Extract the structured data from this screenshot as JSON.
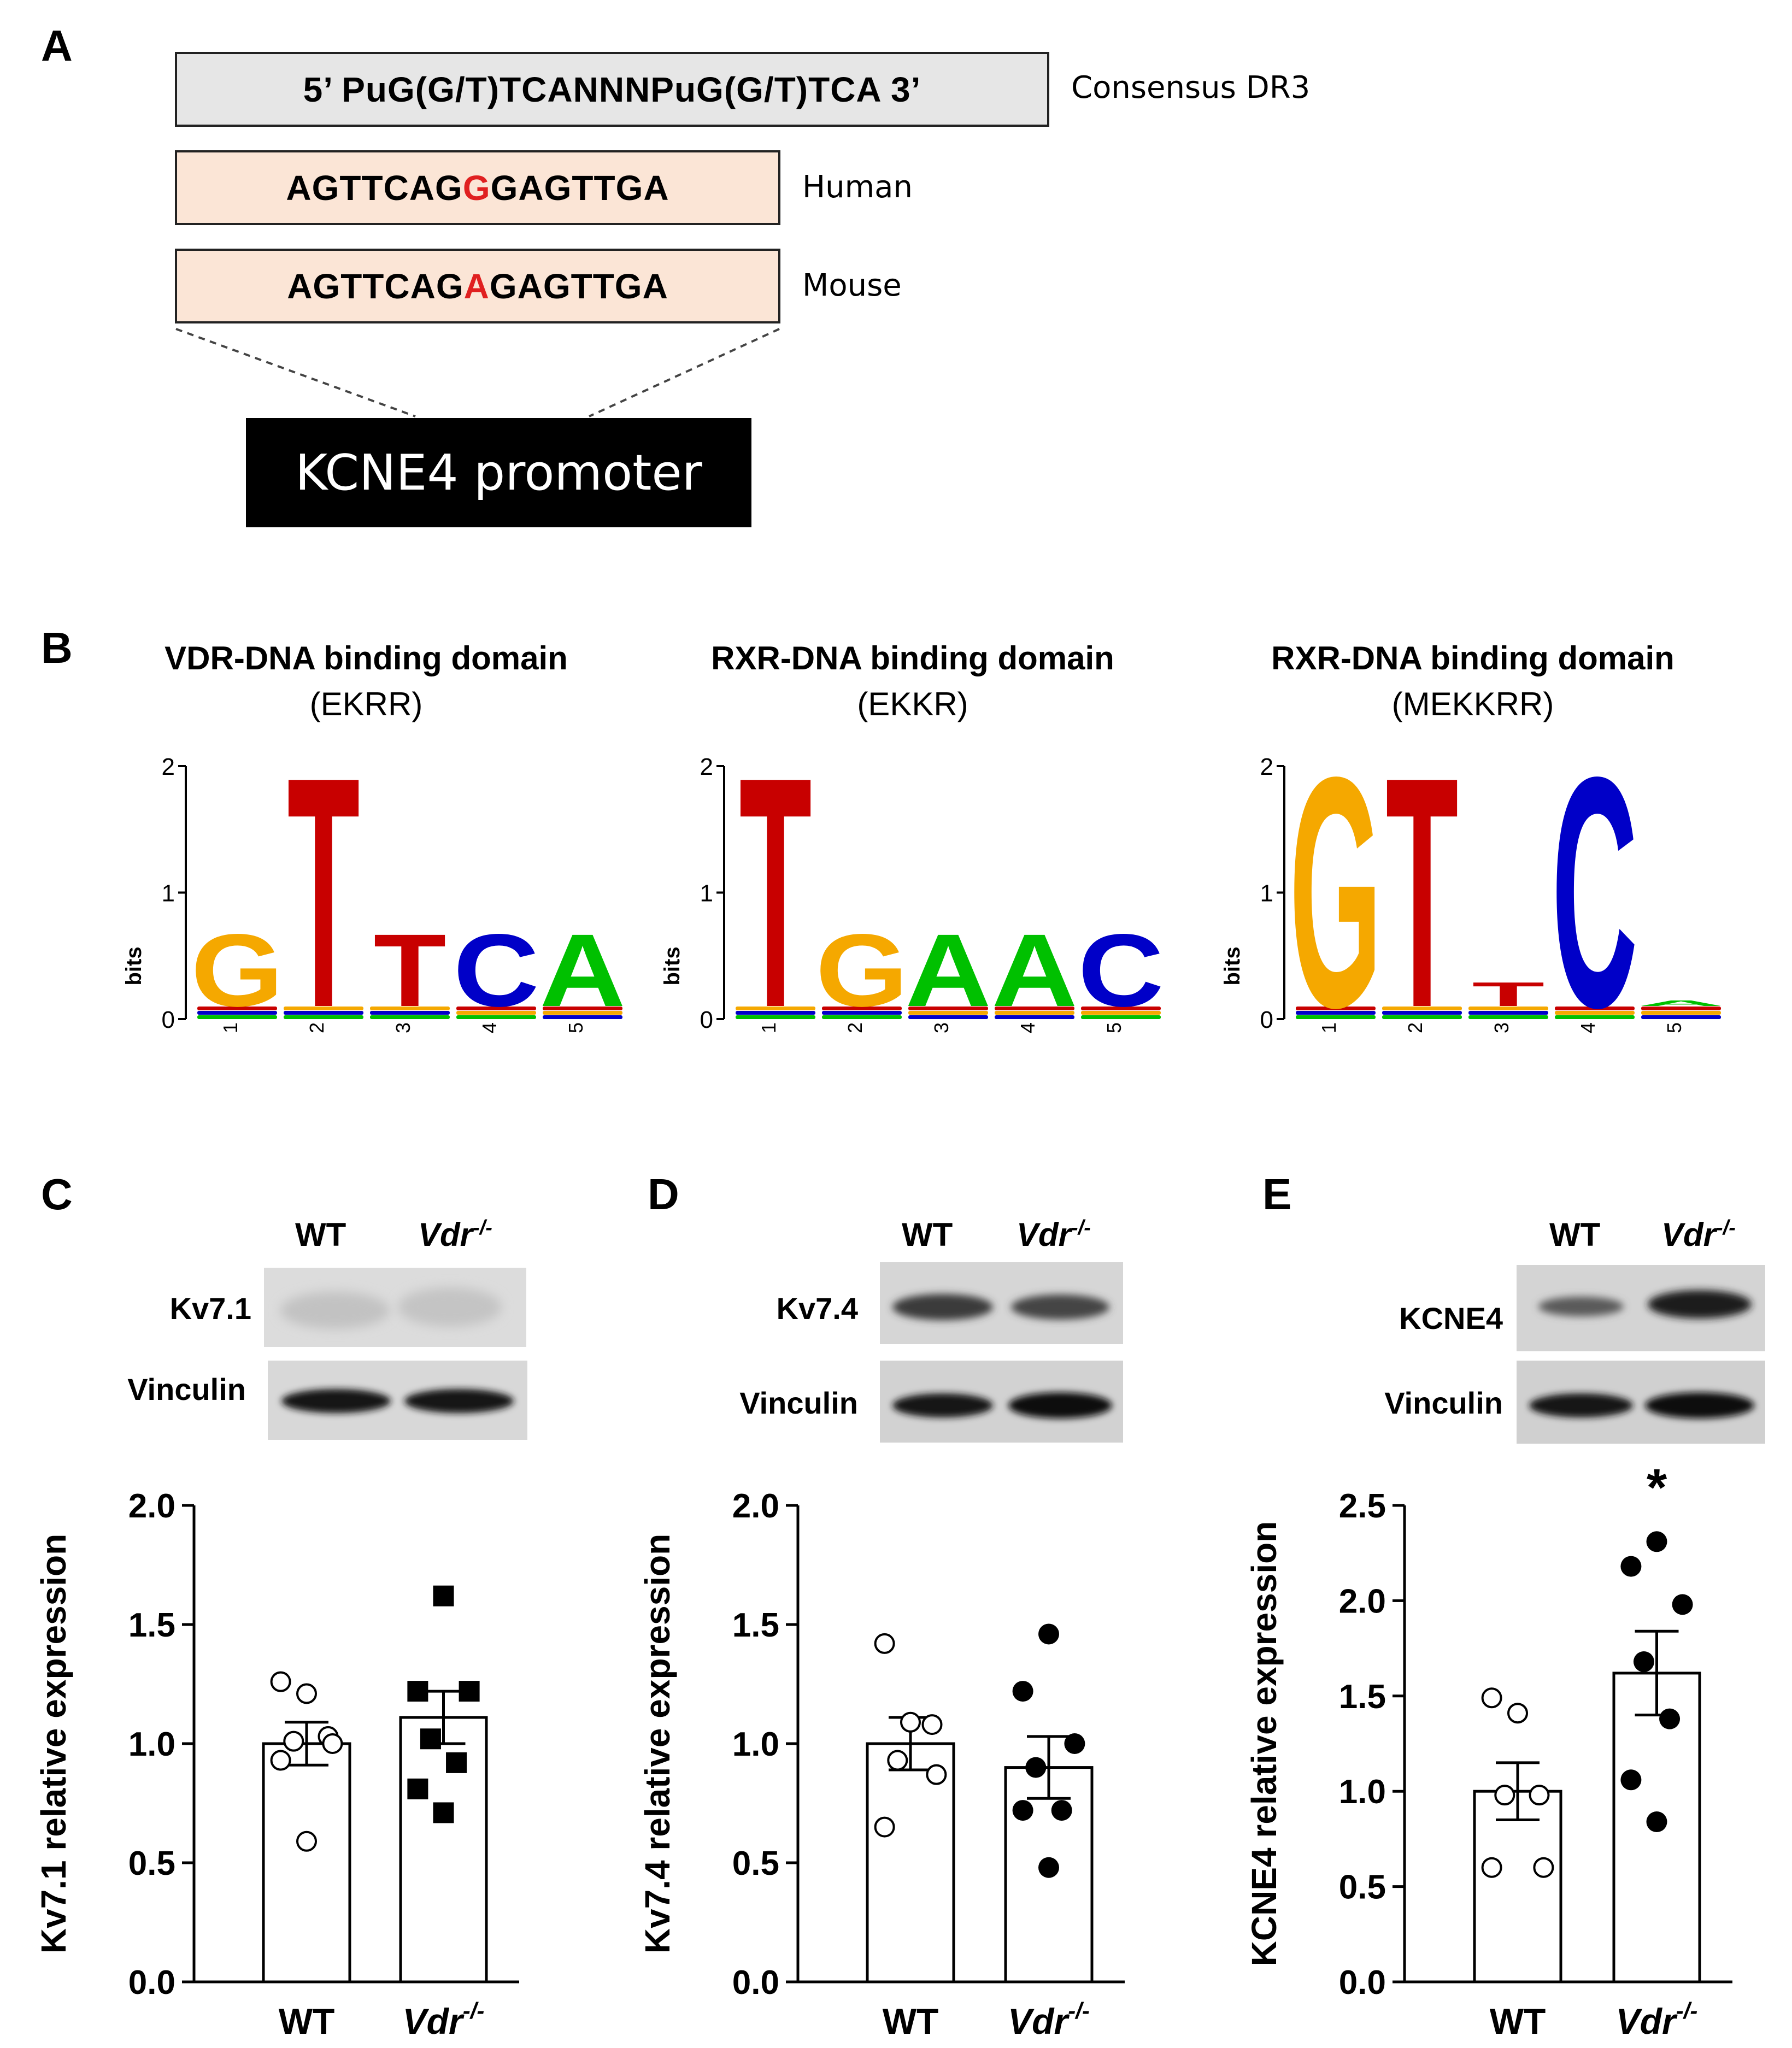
{
  "panel_a": {
    "label": "A",
    "consensus_seq": "5’ PuG(G/T)TCANNNPuG(G/T)TCA 3’",
    "consensus_label": "Consensus DR3",
    "human_pre": "AGTTCAG",
    "human_var": "G",
    "human_post": "GAGTTGA",
    "human_label": "Human",
    "mouse_pre": "AGTTCAG",
    "mouse_var": "A",
    "mouse_post": "GAGTTGA",
    "mouse_label": "Mouse",
    "promoter_label": "KCNE4 promoter",
    "colors": {
      "consensus_fill": "#e6e6e6",
      "species_fill": "#fbe5d6",
      "variant": "#e02020"
    }
  },
  "panel_b": {
    "label": "B",
    "ylabel": "bits",
    "yticks": [
      "0",
      "1",
      "2"
    ],
    "logos": [
      {
        "title": "VDR-DNA binding domain",
        "subtitle": "(EKRR)",
        "positions": [
          {
            "pos": "1",
            "letter": "G",
            "bits": 0.7
          },
          {
            "pos": "2",
            "letter": "T",
            "bits": 2.0
          },
          {
            "pos": "3",
            "letter": "T",
            "bits": 0.7
          },
          {
            "pos": "4",
            "letter": "C",
            "bits": 0.7
          },
          {
            "pos": "5",
            "letter": "A",
            "bits": 0.7
          }
        ]
      },
      {
        "title": "RXR-DNA binding domain",
        "subtitle": "(EKKR)",
        "positions": [
          {
            "pos": "1",
            "letter": "T",
            "bits": 2.0
          },
          {
            "pos": "2",
            "letter": "G",
            "bits": 0.7
          },
          {
            "pos": "3",
            "letter": "A",
            "bits": 0.7
          },
          {
            "pos": "4",
            "letter": "A",
            "bits": 0.7
          },
          {
            "pos": "5",
            "letter": "C",
            "bits": 0.7
          }
        ]
      },
      {
        "title": "RXR-DNA binding domain",
        "subtitle": "(MEKKRR)",
        "positions": [
          {
            "pos": "1",
            "letter": "G",
            "bits": 2.0
          },
          {
            "pos": "2",
            "letter": "T",
            "bits": 2.0
          },
          {
            "pos": "3",
            "letter": "T",
            "bits": 0.3
          },
          {
            "pos": "4",
            "letter": "C",
            "bits": 2.0
          },
          {
            "pos": "5",
            "letter": "A",
            "bits": 0.15
          }
        ]
      }
    ],
    "letter_colors": {
      "A": "#00c000",
      "C": "#0000c8",
      "G": "#f5a800",
      "T": "#c80000"
    }
  },
  "panel_c": {
    "label": "C",
    "lane_wt": "WT",
    "lane_ko": "Vdr",
    "lane_ko_sup": "-/-",
    "blot_target": "Kv7.1",
    "blot_loading": "Vinculin"
  },
  "panel_d": {
    "label": "D",
    "lane_wt": "WT",
    "lane_ko": "Vdr",
    "lane_ko_sup": "-/-",
    "blot_target": "Kv7.4",
    "blot_loading": "Vinculin"
  },
  "panel_e": {
    "label": "E",
    "lane_wt": "WT",
    "lane_ko": "Vdr",
    "lane_ko_sup": "-/-",
    "blot_target": "KCNE4",
    "blot_loading": "Vinculin"
  },
  "chart_data": [
    {
      "type": "bar",
      "panel": "C",
      "categories": [
        "WT",
        "Vdr-/-"
      ],
      "xlabel": "",
      "ylabel": "Kv7.1 relative expression",
      "ylim": [
        0,
        2.0
      ],
      "yticks": [
        0.0,
        0.5,
        1.0,
        1.5,
        2.0
      ],
      "means": [
        1.0,
        1.11
      ],
      "sem": [
        0.09,
        0.11
      ],
      "points": [
        [
          1.26,
          1.21,
          1.03,
          1.01,
          1.0,
          0.93,
          0.59
        ],
        [
          1.62,
          1.22,
          1.22,
          1.02,
          0.92,
          0.81,
          0.71
        ]
      ],
      "markers": [
        "open-circle",
        "filled-square"
      ],
      "annotation": ""
    },
    {
      "type": "bar",
      "panel": "D",
      "categories": [
        "WT",
        "Vdr-/-"
      ],
      "xlabel": "",
      "ylabel": "Kv7.4 relative expression",
      "ylim": [
        0,
        2.0
      ],
      "yticks": [
        0.0,
        0.5,
        1.0,
        1.5,
        2.0
      ],
      "means": [
        1.0,
        0.9
      ],
      "sem": [
        0.11,
        0.13
      ],
      "points": [
        [
          1.42,
          1.09,
          1.08,
          0.93,
          0.87,
          0.65
        ],
        [
          1.46,
          1.22,
          1.0,
          0.9,
          0.72,
          0.72,
          0.48
        ]
      ],
      "markers": [
        "open-circle",
        "filled-circle"
      ],
      "annotation": ""
    },
    {
      "type": "bar",
      "panel": "E",
      "categories": [
        "WT",
        "Vdr-/-"
      ],
      "xlabel": "",
      "ylabel": "KCNE4 relative expression",
      "ylim": [
        0,
        2.5
      ],
      "yticks": [
        0.0,
        0.5,
        1.0,
        1.5,
        2.0,
        2.5
      ],
      "means": [
        1.0,
        1.62
      ],
      "sem": [
        0.15,
        0.22
      ],
      "points": [
        [
          1.49,
          1.41,
          0.98,
          0.98,
          0.6,
          0.6
        ],
        [
          2.31,
          2.18,
          1.98,
          1.68,
          1.38,
          1.06,
          0.84
        ]
      ],
      "markers": [
        "open-circle",
        "filled-circle"
      ],
      "annotation": "*"
    }
  ]
}
